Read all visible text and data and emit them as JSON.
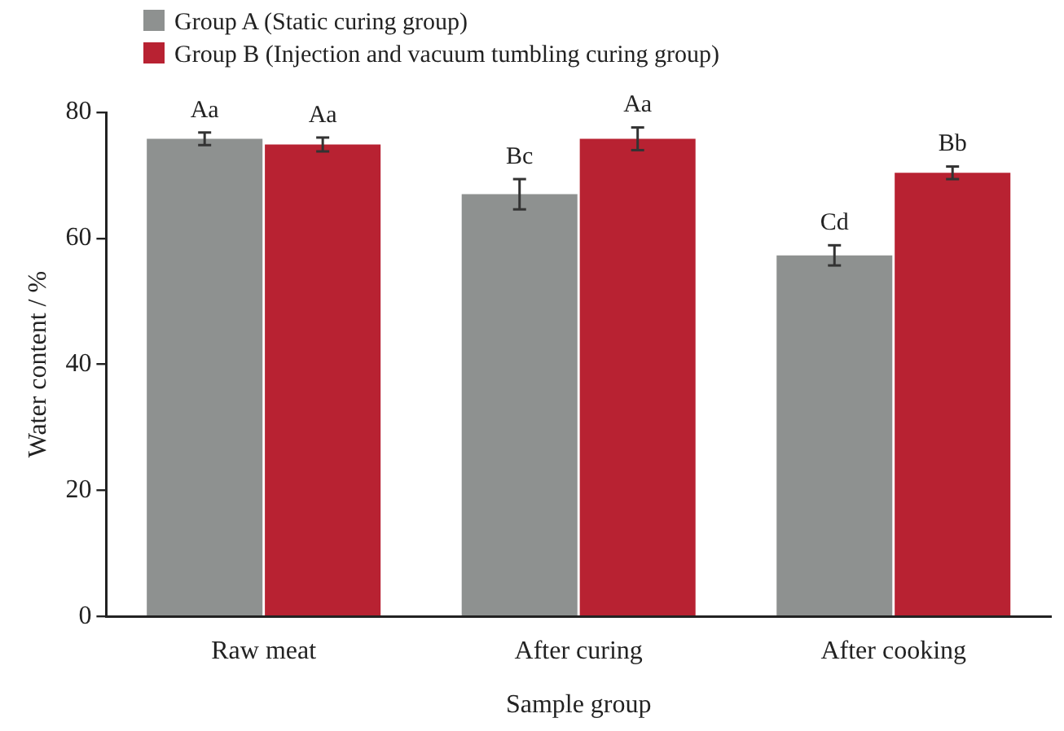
{
  "chart_data": {
    "type": "bar",
    "xlabel": "Sample group",
    "ylabel": "Water content / %",
    "categories": [
      "Raw meat",
      "After curing",
      "After cooking"
    ],
    "series": [
      {
        "name": "Group A (Static curing group)",
        "color": "#8e9190",
        "values": [
          75.8,
          67.0,
          57.3
        ],
        "errors": [
          1.0,
          2.4,
          1.6
        ],
        "value_labels": [
          "Aa",
          "Bc",
          "Cd"
        ]
      },
      {
        "name": "Group B (Injection and vacuum tumbling curing group)",
        "color": "#b82232",
        "values": [
          74.9,
          75.8,
          70.4
        ],
        "errors": [
          1.1,
          1.8,
          1.0
        ],
        "value_labels": [
          "Aa",
          "Aa",
          "Bb"
        ]
      }
    ],
    "ylim": [
      0,
      80
    ],
    "yticks": [
      0,
      20,
      40,
      60,
      80
    ],
    "grid": false,
    "legend": "top left"
  }
}
